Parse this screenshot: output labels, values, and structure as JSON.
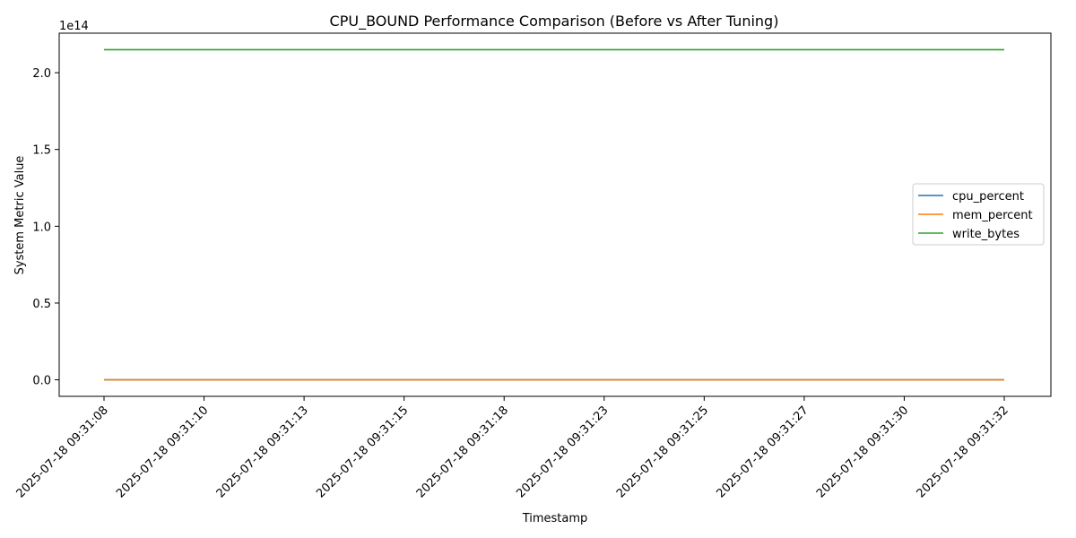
{
  "chart_data": {
    "type": "line",
    "title": "CPU_BOUND Performance Comparison (Before vs After Tuning)",
    "xlabel": "Timestamp",
    "ylabel": "System Metric Value",
    "y_offset_label": "1e14",
    "categories": [
      "2025-07-18 09:31:08",
      "2025-07-18 09:31:10",
      "2025-07-18 09:31:13",
      "2025-07-18 09:31:15",
      "2025-07-18 09:31:18",
      "2025-07-18 09:31:23",
      "2025-07-18 09:31:25",
      "2025-07-18 09:31:27",
      "2025-07-18 09:31:30",
      "2025-07-18 09:31:32"
    ],
    "y_ticks": [
      0.0,
      0.5,
      1.0,
      1.5,
      2.0
    ],
    "ylim": [
      -0.1075,
      2.2575
    ],
    "grid": false,
    "legend_position": "center-right",
    "series": [
      {
        "name": "cpu_percent",
        "color": "#1f77b4",
        "values": [
          0,
          0,
          0,
          0,
          0,
          0,
          0,
          0,
          0,
          0
        ]
      },
      {
        "name": "mem_percent",
        "color": "#ff7f0e",
        "values": [
          0,
          0,
          0,
          0,
          0,
          0,
          0,
          0,
          0,
          0
        ]
      },
      {
        "name": "write_bytes",
        "color": "#2ca02c",
        "values": [
          2.15,
          2.15,
          2.15,
          2.15,
          2.15,
          2.15,
          2.15,
          2.15,
          2.15,
          2.15
        ]
      }
    ]
  }
}
